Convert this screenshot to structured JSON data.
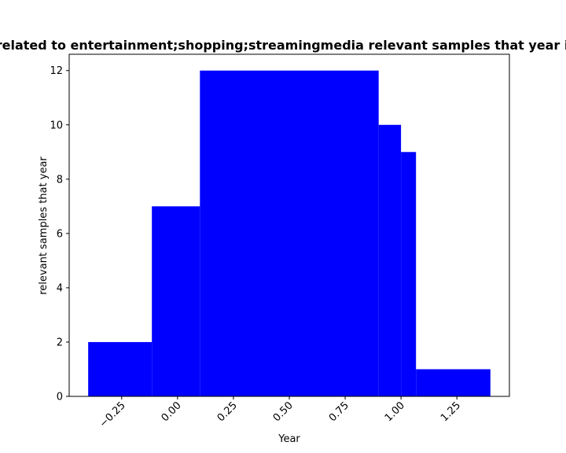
{
  "chart_data": {
    "type": "bar",
    "title": "Number of related to entertainment;shopping;streamingmedia relevant samples that year in all samples",
    "xlabel": "Year",
    "ylabel": "relevant samples that year",
    "xlim": [
      -0.485,
      1.485
    ],
    "ylim": [
      0,
      12.6
    ],
    "grid": false,
    "color": "#0000ff",
    "bars": [
      {
        "x_start": -0.4,
        "x_end": -0.115,
        "value": 2
      },
      {
        "x_start": -0.115,
        "x_end": 0.1,
        "value": 7
      },
      {
        "x_start": 0.1,
        "x_end": 0.9,
        "value": 12
      },
      {
        "x_start": 0.9,
        "x_end": 1.0,
        "value": 10
      },
      {
        "x_start": 1.0,
        "x_end": 1.067,
        "value": 9
      },
      {
        "x_start": 1.067,
        "x_end": 1.4,
        "value": 1
      }
    ],
    "x_ticks": [
      {
        "value": -0.25,
        "label": "−0.25"
      },
      {
        "value": 0.0,
        "label": "0.00"
      },
      {
        "value": 0.25,
        "label": "0.25"
      },
      {
        "value": 0.5,
        "label": "0.50"
      },
      {
        "value": 0.75,
        "label": "0.75"
      },
      {
        "value": 1.0,
        "label": "1.00"
      },
      {
        "value": 1.25,
        "label": "1.25"
      }
    ],
    "y_ticks": [
      {
        "value": 0,
        "label": "0"
      },
      {
        "value": 2,
        "label": "2"
      },
      {
        "value": 4,
        "label": "4"
      },
      {
        "value": 6,
        "label": "6"
      },
      {
        "value": 8,
        "label": "8"
      },
      {
        "value": 10,
        "label": "10"
      },
      {
        "value": 12,
        "label": "12"
      }
    ]
  }
}
